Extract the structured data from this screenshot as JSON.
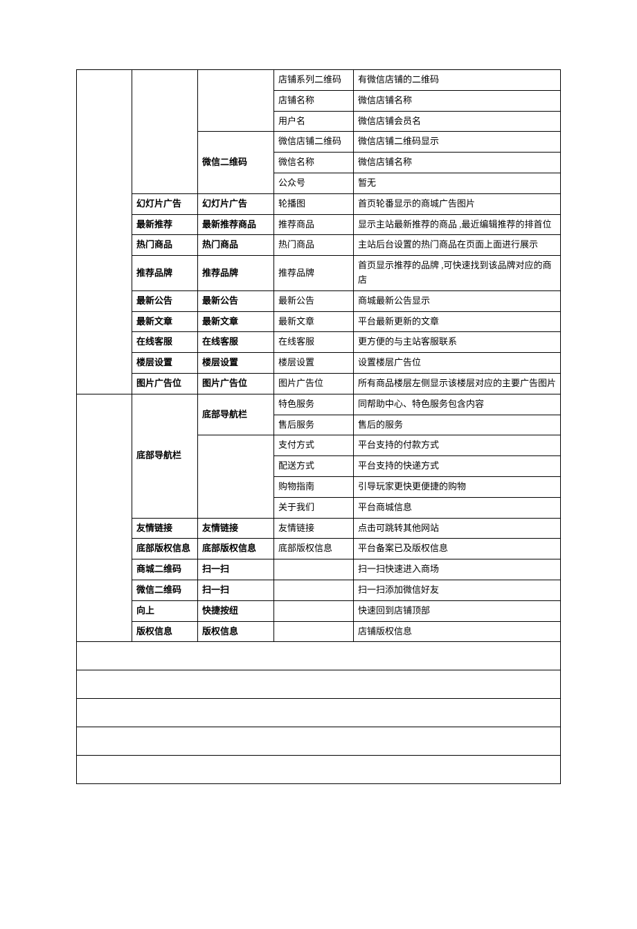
{
  "colors": {
    "border": "#000000",
    "background": "#ffffff",
    "text": "#000000"
  },
  "rows": [
    {
      "c4": "店铺系列二维码",
      "c5": "有微信店铺的二维码"
    },
    {
      "c4": "店铺名称",
      "c5": "微信店铺名称"
    },
    {
      "c4": "用户名",
      "c5": "微信店铺会员名"
    },
    {
      "c3": "微信二维码",
      "c3bold": true,
      "c4": "微信店铺二维码",
      "c5": "微信店铺二维码显示"
    },
    {
      "c4": "微信名称",
      "c5": "微信店铺名称"
    },
    {
      "c4": "公众号",
      "c5": "暂无"
    },
    {
      "c2": "幻灯片广告",
      "c2bold": true,
      "c3": "幻灯片广告",
      "c3bold": true,
      "c4": "轮播图",
      "c5": "首页轮番显示的商城广告图片"
    },
    {
      "c2": "最新推荐",
      "c2bold": true,
      "c3": "最新推荐商品",
      "c3bold": true,
      "c4": "推荐商品",
      "c5": "显示主站最新推荐的商品 ,最近编辑推荐的排首位"
    },
    {
      "c2": "热门商品",
      "c2bold": true,
      "c3": "热门商品",
      "c3bold": true,
      "c4": "热门商品",
      "c5": "主站后台设置的热门商品在页面上面进行展示"
    },
    {
      "c2": "推荐品牌",
      "c2bold": true,
      "c3": "推荐品牌",
      "c3bold": true,
      "c4": "推荐品牌",
      "c5": "首页显示推荐的品牌 ,可快速找到该品牌对应的商店"
    },
    {
      "c2": "最新公告",
      "c2bold": true,
      "c3": "最新公告",
      "c3bold": true,
      "c4": "最新公告",
      "c5": "商城最新公告显示"
    },
    {
      "c2": "最新文章",
      "c2bold": true,
      "c3": "最新文章",
      "c3bold": true,
      "c4": "最新文章",
      "c5": "平台最新更新的文章"
    },
    {
      "c2": "在线客服",
      "c2bold": true,
      "c3": "在线客服",
      "c3bold": true,
      "c4": "在线客服",
      "c5": "更方便的与主站客服联系"
    },
    {
      "c2": "楼层设置",
      "c2bold": true,
      "c3": "楼层设置",
      "c3bold": true,
      "c4": "楼层设置",
      "c5": "设置楼层广告位"
    },
    {
      "c2": "图片广告位",
      "c2bold": true,
      "c3": "图片广告位",
      "c3bold": true,
      "c4": "图片广告位",
      "c5": "所有商品楼层左侧显示该楼层对应的主要广告图片"
    },
    {
      "c2": "底部导航栏",
      "c2bold": true,
      "c3": "底部导航栏",
      "c3bold": true,
      "c4": "特色服务",
      "c5": "同帮助中心、特色服务包含内容"
    },
    {
      "c4": "售后服务",
      "c5": "售后的服务"
    },
    {
      "c4": "支付方式",
      "c5": "平台支持的付款方式"
    },
    {
      "c4": "配送方式",
      "c5": "平台支持的快递方式"
    },
    {
      "c4": "购物指南",
      "c5": "引导玩家更快更便捷的购物"
    },
    {
      "c4": "关于我们",
      "c5": "平台商城信息"
    },
    {
      "c2": "友情链接",
      "c2bold": true,
      "c3": "友情链接",
      "c3bold": true,
      "c4": "友情链接",
      "c5": "点击可跳转其他网站"
    },
    {
      "c2": "底部版权信息",
      "c2bold": true,
      "c3": "底部版权信息",
      "c3bold": true,
      "c4": "底部版权信息",
      "c5": "平台备案已及版权信息"
    },
    {
      "c2": "商城二维码",
      "c2bold": true,
      "c3": "扫一扫",
      "c3bold": true,
      "c4": "",
      "c5": "扫一扫快速进入商场"
    },
    {
      "c2": "微信二维码",
      "c2bold": true,
      "c3": "扫一扫",
      "c3bold": true,
      "c4": "",
      "c5": "扫一扫添加微信好友"
    },
    {
      "c2": "向上",
      "c2bold": true,
      "c3": "快捷按纽",
      "c3bold": true,
      "c4": "",
      "c5": "快速回到店铺顶部"
    },
    {
      "c2": "版权信息",
      "c2bold": true,
      "c3": "版权信息",
      "c3bold": true,
      "c4": "",
      "c5": "店铺版权信息"
    }
  ]
}
